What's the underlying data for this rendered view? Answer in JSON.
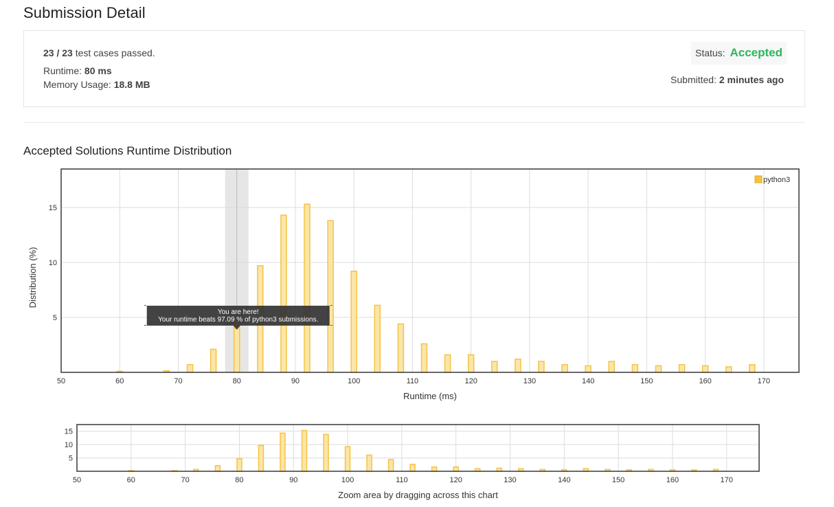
{
  "page_title": "Submission Detail",
  "detail": {
    "passed": "23 / 23",
    "passed_suffix": "test cases passed.",
    "runtime_label": "Runtime:",
    "runtime_value": "80 ms",
    "memory_label": "Memory Usage:",
    "memory_value": "18.8 MB",
    "status_label": "Status:",
    "status_value": "Accepted",
    "status_color": "#2db55d",
    "submitted_label": "Submitted:",
    "submitted_value": "2 minutes ago"
  },
  "section_title": "Accepted Solutions Runtime Distribution",
  "chart_data": [
    {
      "type": "bar",
      "xlabel": "Runtime (ms)",
      "ylabel": "Distribution (%)",
      "xlim": [
        50,
        176
      ],
      "ylim": [
        0,
        18.5
      ],
      "xticks": [
        50,
        60,
        70,
        80,
        90,
        100,
        110,
        120,
        130,
        140,
        150,
        160,
        170
      ],
      "yticks": [
        5,
        10,
        15
      ],
      "grid": true,
      "legend": "top-right",
      "bar_color": "#f5c342",
      "bar_fill": "#fbe5a8",
      "series": [
        {
          "name": "python3",
          "x": [
            60,
            68,
            72,
            76,
            80,
            84,
            88,
            92,
            96,
            100,
            104,
            108,
            112,
            116,
            120,
            124,
            128,
            132,
            136,
            140,
            144,
            148,
            152,
            156,
            160,
            164,
            168
          ],
          "values": [
            0.1,
            0.15,
            0.7,
            2.1,
            4.7,
            9.7,
            14.3,
            15.3,
            13.8,
            9.2,
            6.1,
            4.4,
            2.6,
            1.6,
            1.6,
            1.0,
            1.2,
            1.0,
            0.7,
            0.6,
            1.0,
            0.7,
            0.6,
            0.7,
            0.6,
            0.5,
            0.7
          ]
        }
      ],
      "highlight_x": 80,
      "tooltip": {
        "line1": "You are here!",
        "line2": "Your runtime beats 97.09 % of python3 submissions."
      }
    },
    {
      "type": "bar",
      "caption": "Zoom area by dragging across this chart",
      "xlim": [
        50,
        176
      ],
      "ylim": [
        0,
        17.5
      ],
      "xticks": [
        50,
        60,
        70,
        80,
        90,
        100,
        110,
        120,
        130,
        140,
        150,
        160,
        170
      ],
      "yticks": [
        5,
        10,
        15
      ],
      "grid": true,
      "series": [
        {
          "name": "python3",
          "x": [
            60,
            68,
            72,
            76,
            80,
            84,
            88,
            92,
            96,
            100,
            104,
            108,
            112,
            116,
            120,
            124,
            128,
            132,
            136,
            140,
            144,
            148,
            152,
            156,
            160,
            164,
            168
          ],
          "values": [
            0.1,
            0.15,
            0.7,
            2.1,
            4.7,
            9.7,
            14.3,
            15.3,
            13.8,
            9.2,
            6.1,
            4.4,
            2.6,
            1.6,
            1.6,
            1.0,
            1.2,
            1.0,
            0.7,
            0.6,
            1.0,
            0.7,
            0.6,
            0.7,
            0.6,
            0.5,
            0.7
          ]
        }
      ]
    }
  ]
}
